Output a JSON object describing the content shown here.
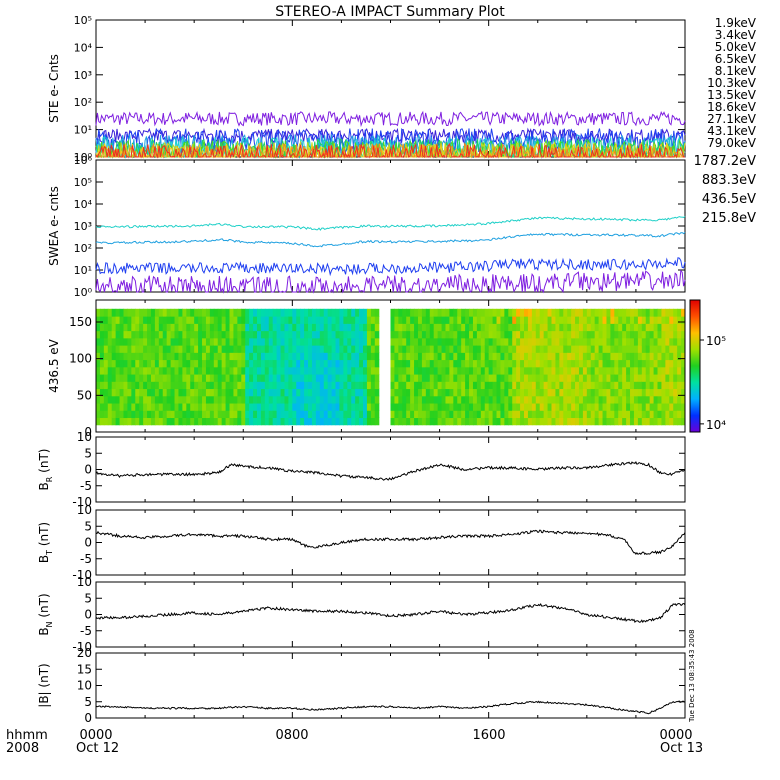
{
  "title": "STEREO-A IMPACT Summary Plot",
  "bottom_labels": {
    "hhmm": "hhmm",
    "year": "2008",
    "x_ticks": [
      "0000",
      "0800",
      "1600",
      "0000"
    ],
    "date_left": "Oct 12",
    "date_right": "Oct 13"
  },
  "side_stamp": "Tue Dec 13 08:35:43 2008",
  "colors": {
    "ste": [
      "#7f1fe0",
      "#3a1fd8",
      "#1f3ff0",
      "#1fa0e0",
      "#1fd0d0",
      "#1fd060",
      "#4fd81f",
      "#c8d81f",
      "#f0c81f",
      "#f08a1f",
      "#f02f1f"
    ],
    "swea": [
      "#7f1fe0",
      "#1f3ff0",
      "#1fa0e0",
      "#1fd0c8"
    ],
    "spectrogram_stops": [
      "#6a00d8",
      "#0030ff",
      "#00b0ff",
      "#00e0a0",
      "#20d020",
      "#a0e000",
      "#ffc000",
      "#ff5000",
      "#e00000"
    ]
  },
  "chart_data": [
    {
      "type": "line",
      "panel": "ste",
      "ylabel": "STE e- Cnts",
      "yscale": "log",
      "ylim": [
        1,
        100000
      ],
      "yticks": [
        "10⁰",
        "10¹",
        "10²",
        "10³",
        "10⁴",
        "10⁵"
      ],
      "xlim": [
        "2008-10-12 00:00",
        "2008-10-13 00:00"
      ],
      "series": [
        {
          "name": "1.9keV",
          "level": 25
        },
        {
          "name": "3.4keV",
          "level": 6
        },
        {
          "name": "5.0keV",
          "level": 4
        },
        {
          "name": "6.5keV",
          "level": 2.4
        },
        {
          "name": "8.1keV",
          "level": 1.9
        },
        {
          "name": "10.3keV",
          "level": 1.6
        },
        {
          "name": "13.5keV",
          "level": 1.4
        },
        {
          "name": "18.6keV",
          "level": 1.25
        },
        {
          "name": "27.1keV",
          "level": 1.15
        },
        {
          "name": "43.1keV",
          "level": 1.1
        },
        {
          "name": "79.0keV",
          "level": 1.05
        }
      ]
    },
    {
      "type": "line",
      "panel": "swea",
      "ylabel": "SWEA e- cnts",
      "yscale": "log",
      "ylim": [
        1,
        1000000
      ],
      "yticks": [
        "10⁰",
        "10¹",
        "10²",
        "10³",
        "10⁴",
        "10⁵",
        "10⁶"
      ],
      "xlim": [
        "2008-10-12 00:00",
        "2008-10-13 00:00"
      ],
      "series": [
        {
          "name": "1787.2eV",
          "x": [
            0,
            4,
            8,
            10,
            12,
            14,
            16,
            17,
            18,
            20,
            22,
            24
          ],
          "y": [
            2,
            2,
            2,
            2,
            2,
            2,
            2.5,
            2.5,
            2.5,
            3,
            3,
            3.5
          ]
        },
        {
          "name": "883.3eV",
          "x": [
            0,
            4,
            8,
            10,
            12,
            14,
            16,
            17,
            18,
            20,
            22,
            24
          ],
          "y": [
            12,
            12,
            12,
            11,
            12,
            13,
            15,
            20,
            18,
            18,
            17,
            22
          ]
        },
        {
          "name": "436.5eV",
          "x": [
            0,
            2,
            4,
            5,
            6,
            8,
            9,
            10,
            11,
            12,
            14,
            16,
            17,
            18,
            20,
            22,
            23,
            24
          ],
          "y": [
            170,
            180,
            200,
            240,
            190,
            160,
            120,
            150,
            200,
            190,
            200,
            230,
            330,
            420,
            400,
            380,
            350,
            500
          ]
        },
        {
          "name": "215.8eV",
          "x": [
            0,
            2,
            4,
            5,
            6,
            8,
            9,
            10,
            11,
            12,
            14,
            16,
            17,
            18,
            20,
            22,
            23,
            24
          ],
          "y": [
            900,
            950,
            1000,
            1200,
            950,
            900,
            700,
            850,
            1000,
            980,
            1000,
            1300,
            1800,
            2300,
            2100,
            1900,
            1900,
            2600
          ]
        }
      ]
    },
    {
      "type": "heatmap",
      "panel": "pad",
      "ylabel": "436.5 eV",
      "ylim": [
        0,
        180
      ],
      "yticks": [
        0,
        50,
        100,
        150
      ],
      "colorbar": {
        "scale": "log",
        "ticks": [
          "10⁴",
          "10⁵"
        ],
        "min": 8000,
        "max": 300000
      },
      "xlim": [
        "2008-10-12 00:00",
        "2008-10-13 00:00"
      ],
      "data_gap_hours": [
        11.5,
        12.0
      ]
    },
    {
      "type": "line",
      "panel": "br",
      "ylabel": "B_R (nT)",
      "ylim": [
        -10,
        10
      ],
      "yticks": [
        -10,
        -5,
        0,
        5,
        10
      ],
      "xlim": [
        "2008-10-12 00:00",
        "2008-10-13 00:00"
      ],
      "x": [
        0,
        1,
        2,
        3,
        4,
        5,
        5.5,
        6,
        7,
        8,
        9,
        10,
        11,
        12,
        13,
        14,
        15,
        16,
        17,
        18,
        19,
        20,
        21,
        22,
        22.5,
        23,
        23.5,
        24
      ],
      "y": [
        -1,
        -2,
        -1.5,
        -1.5,
        -1.5,
        -1,
        1.5,
        1,
        0.5,
        -0.5,
        -1,
        -2,
        -2.5,
        -3,
        -0.5,
        1.5,
        0,
        0.5,
        0.5,
        0,
        0.5,
        0.5,
        1.5,
        2,
        1.5,
        -1,
        -1.5,
        0
      ]
    },
    {
      "type": "line",
      "panel": "bt",
      "ylabel": "B_T (nT)",
      "ylim": [
        -10,
        10
      ],
      "yticks": [
        -10,
        -5,
        0,
        5,
        10
      ],
      "xlim": [
        "2008-10-12 00:00",
        "2008-10-13 00:00"
      ],
      "x": [
        0,
        1,
        2,
        3,
        4,
        5,
        6,
        7,
        8,
        8.5,
        9,
        10,
        11,
        12,
        13,
        14,
        15,
        16,
        17,
        18,
        19,
        20,
        21,
        21.5,
        22,
        23,
        23.5,
        24
      ],
      "y": [
        3,
        2,
        1.5,
        2,
        2.5,
        2,
        2,
        1,
        1,
        -1,
        -1.5,
        0,
        1,
        1,
        1,
        1.5,
        2,
        2,
        2.5,
        3.5,
        3,
        3,
        2,
        1,
        -3.5,
        -3,
        -1,
        3
      ]
    },
    {
      "type": "line",
      "panel": "bn",
      "ylabel": "B_N (nT)",
      "ylim": [
        -10,
        10
      ],
      "yticks": [
        -10,
        -5,
        0,
        5,
        10
      ],
      "xlim": [
        "2008-10-12 00:00",
        "2008-10-13 00:00"
      ],
      "x": [
        0,
        1,
        2,
        3,
        4,
        5,
        6,
        7,
        8,
        9,
        10,
        11,
        12,
        13,
        14,
        15,
        16,
        17,
        18,
        19,
        20,
        21,
        22,
        22.5,
        23,
        23.5,
        24
      ],
      "y": [
        -1,
        -1,
        -0.5,
        0,
        0.5,
        0,
        1,
        2,
        1.5,
        1,
        1,
        0.5,
        -0.5,
        0,
        1,
        0,
        0.5,
        1.5,
        3,
        2,
        0,
        -1,
        -2,
        -2,
        -1,
        3,
        3
      ]
    },
    {
      "type": "line",
      "panel": "bmag",
      "ylabel": "|B| (nT)",
      "ylim": [
        0,
        20
      ],
      "yticks": [
        0,
        5,
        10,
        15,
        20
      ],
      "xlim": [
        "2008-10-12 00:00",
        "2008-10-13 00:00"
      ],
      "x": [
        0,
        1,
        2,
        3,
        4,
        5,
        6,
        7,
        8,
        9,
        10,
        11,
        12,
        13,
        14,
        15,
        16,
        17,
        18,
        19,
        20,
        21,
        22,
        22.5,
        23,
        23.5,
        24
      ],
      "y": [
        3.5,
        3.5,
        3,
        3,
        3,
        3,
        3.5,
        3,
        3,
        2.5,
        3,
        3.5,
        3.5,
        3,
        3.5,
        3,
        3.5,
        4.5,
        5,
        4.5,
        4,
        3,
        2,
        1.5,
        3,
        5,
        5
      ]
    }
  ]
}
